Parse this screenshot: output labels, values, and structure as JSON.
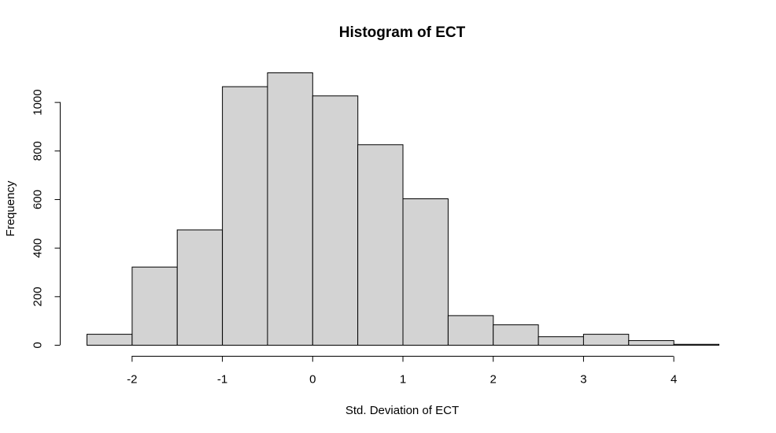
{
  "chart_data": {
    "type": "bar",
    "title": "Histogram of ECT",
    "xlabel": "Std. Deviation of ECT",
    "ylabel": "Frequency",
    "bin_edges": [
      -2.5,
      -2,
      -1.5,
      -1,
      -0.5,
      0,
      0.5,
      1,
      1.5,
      2,
      2.5,
      3,
      3.5,
      4,
      4.5
    ],
    "values": [
      45,
      322,
      475,
      1065,
      1122,
      1027,
      826,
      603,
      122,
      84,
      35,
      45,
      19,
      4
    ],
    "xlim": [
      -2.5,
      4.5
    ],
    "ylim": [
      0,
      1122
    ],
    "x_ticks": [
      -2,
      -1,
      0,
      1,
      2,
      3,
      4
    ],
    "x_tick_labels": [
      "-2",
      "-1",
      "0",
      "1",
      "2",
      "3",
      "4"
    ],
    "y_ticks": [
      0,
      200,
      400,
      600,
      800,
      1000
    ],
    "y_tick_labels": [
      "0",
      "200",
      "400",
      "600",
      "800",
      "1000"
    ],
    "grid": false,
    "colors": {
      "bar_fill": "#d3d3d3",
      "bar_stroke": "#000000"
    }
  }
}
